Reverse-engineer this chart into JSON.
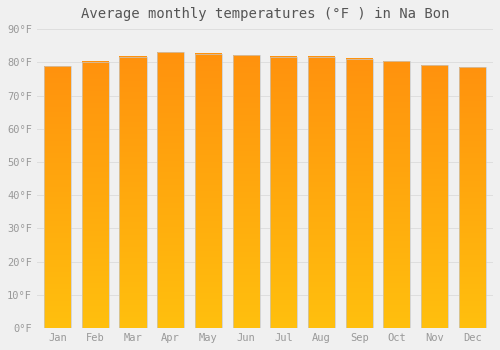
{
  "title": "Average monthly temperatures (°F ) in Na Bon",
  "months": [
    "Jan",
    "Feb",
    "Mar",
    "Apr",
    "May",
    "Jun",
    "Jul",
    "Aug",
    "Sep",
    "Oct",
    "Nov",
    "Dec"
  ],
  "values": [
    78.8,
    80.2,
    81.7,
    83.1,
    82.6,
    82.2,
    81.7,
    81.7,
    81.1,
    80.4,
    79.2,
    78.6
  ],
  "ylim": [
    0,
    90
  ],
  "yticks": [
    0,
    10,
    20,
    30,
    40,
    50,
    60,
    70,
    80,
    90
  ],
  "bar_color_top": "#F5A623",
  "bar_color_bottom": "#FFD966",
  "bar_edge_color": "#C8C8C8",
  "background_color": "#F0F0F0",
  "grid_color": "#DEDEDE",
  "title_fontsize": 10,
  "tick_fontsize": 7.5,
  "title_color": "#555555",
  "tick_color": "#999999",
  "bar_width": 0.72
}
